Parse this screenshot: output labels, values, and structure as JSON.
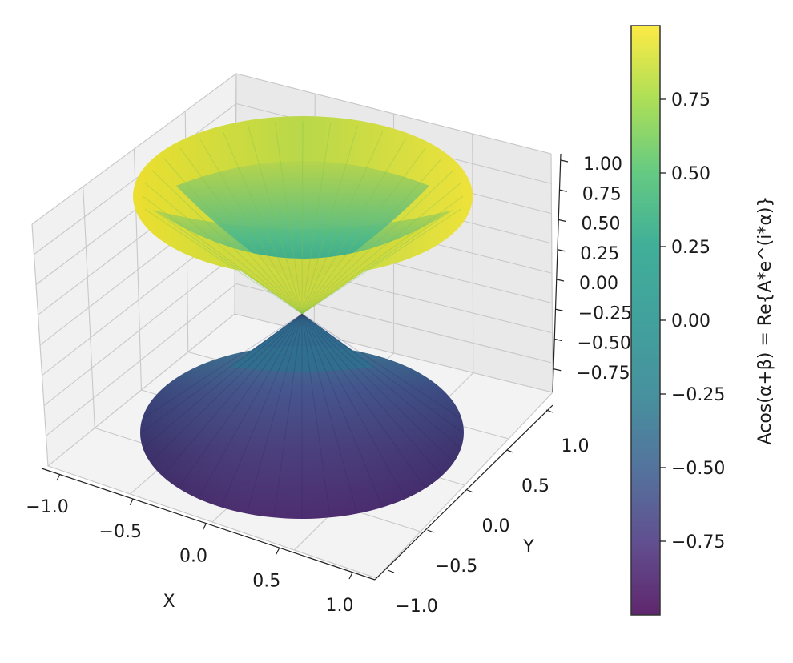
{
  "chart_data": {
    "type": "surface3d",
    "title": "",
    "surface": "double cone z = ±sqrt(x^2 + y^2), colored by z",
    "xlabel": "X",
    "ylabel": "Y",
    "zlabel": "",
    "xlim": [
      -1.0,
      1.0
    ],
    "ylim": [
      -1.0,
      1.0
    ],
    "zlim": [
      -1.0,
      1.0
    ],
    "x_ticks": [
      -1.0,
      -0.5,
      0.0,
      0.5,
      1.0
    ],
    "x_tick_labels": [
      "−1.0",
      "−0.5",
      "0.0",
      "0.5",
      "1.0"
    ],
    "y_ticks": [
      -1.0,
      -0.5,
      0.0,
      0.5,
      1.0
    ],
    "y_tick_labels": [
      "−1.0",
      "−0.5",
      "0.0",
      "0.5",
      "1.0"
    ],
    "z_ticks": [
      -0.75,
      -0.5,
      -0.25,
      0.0,
      0.25,
      0.5,
      0.75,
      1.0
    ],
    "z_tick_labels": [
      "−0.75",
      "−0.50",
      "−0.25",
      "0.00",
      "0.25",
      "0.50",
      "0.75",
      "1.00"
    ],
    "colormap": "viridis",
    "colorbar": {
      "label": "Acos(α+β) = Re{A*e^(i*α)}",
      "range": [
        -1.0,
        1.0
      ],
      "ticks": [
        -0.75,
        -0.5,
        -0.25,
        0.0,
        0.25,
        0.5,
        0.75
      ],
      "tick_labels": [
        "−0.75",
        "−0.50",
        "−0.25",
        "0.00",
        "0.25",
        "0.50",
        "0.75"
      ]
    },
    "grid": true
  }
}
